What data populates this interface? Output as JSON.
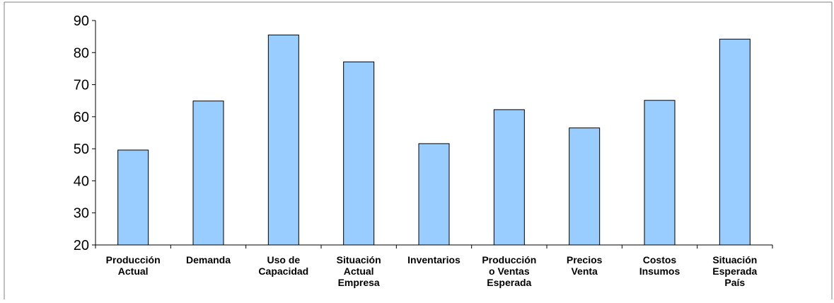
{
  "chart_data": {
    "type": "bar",
    "categories": [
      [
        "Producción",
        "Actual"
      ],
      [
        "Demanda"
      ],
      [
        "Uso de",
        "Capacidad"
      ],
      [
        "Situación",
        "Actual",
        "Empresa"
      ],
      [
        "Inventarios"
      ],
      [
        "Producción",
        "o Ventas",
        "Esperada"
      ],
      [
        "Precios",
        "Venta"
      ],
      [
        "Costos",
        "Insumos"
      ],
      [
        "Situación",
        "Esperada",
        "País"
      ]
    ],
    "values": [
      49.6,
      64.9,
      85.5,
      77.1,
      51.6,
      62.2,
      56.5,
      65.1,
      84.2
    ],
    "ylim": [
      20,
      90
    ],
    "yticks": [
      20,
      30,
      40,
      50,
      60,
      70,
      80,
      90
    ],
    "title": "",
    "xlabel": "",
    "ylabel": "",
    "grid": false,
    "legend": "none",
    "colors": {
      "bar_fill": "#99CCFF",
      "bar_stroke": "#000000",
      "axis": "#000000",
      "frame": "#808080"
    }
  }
}
